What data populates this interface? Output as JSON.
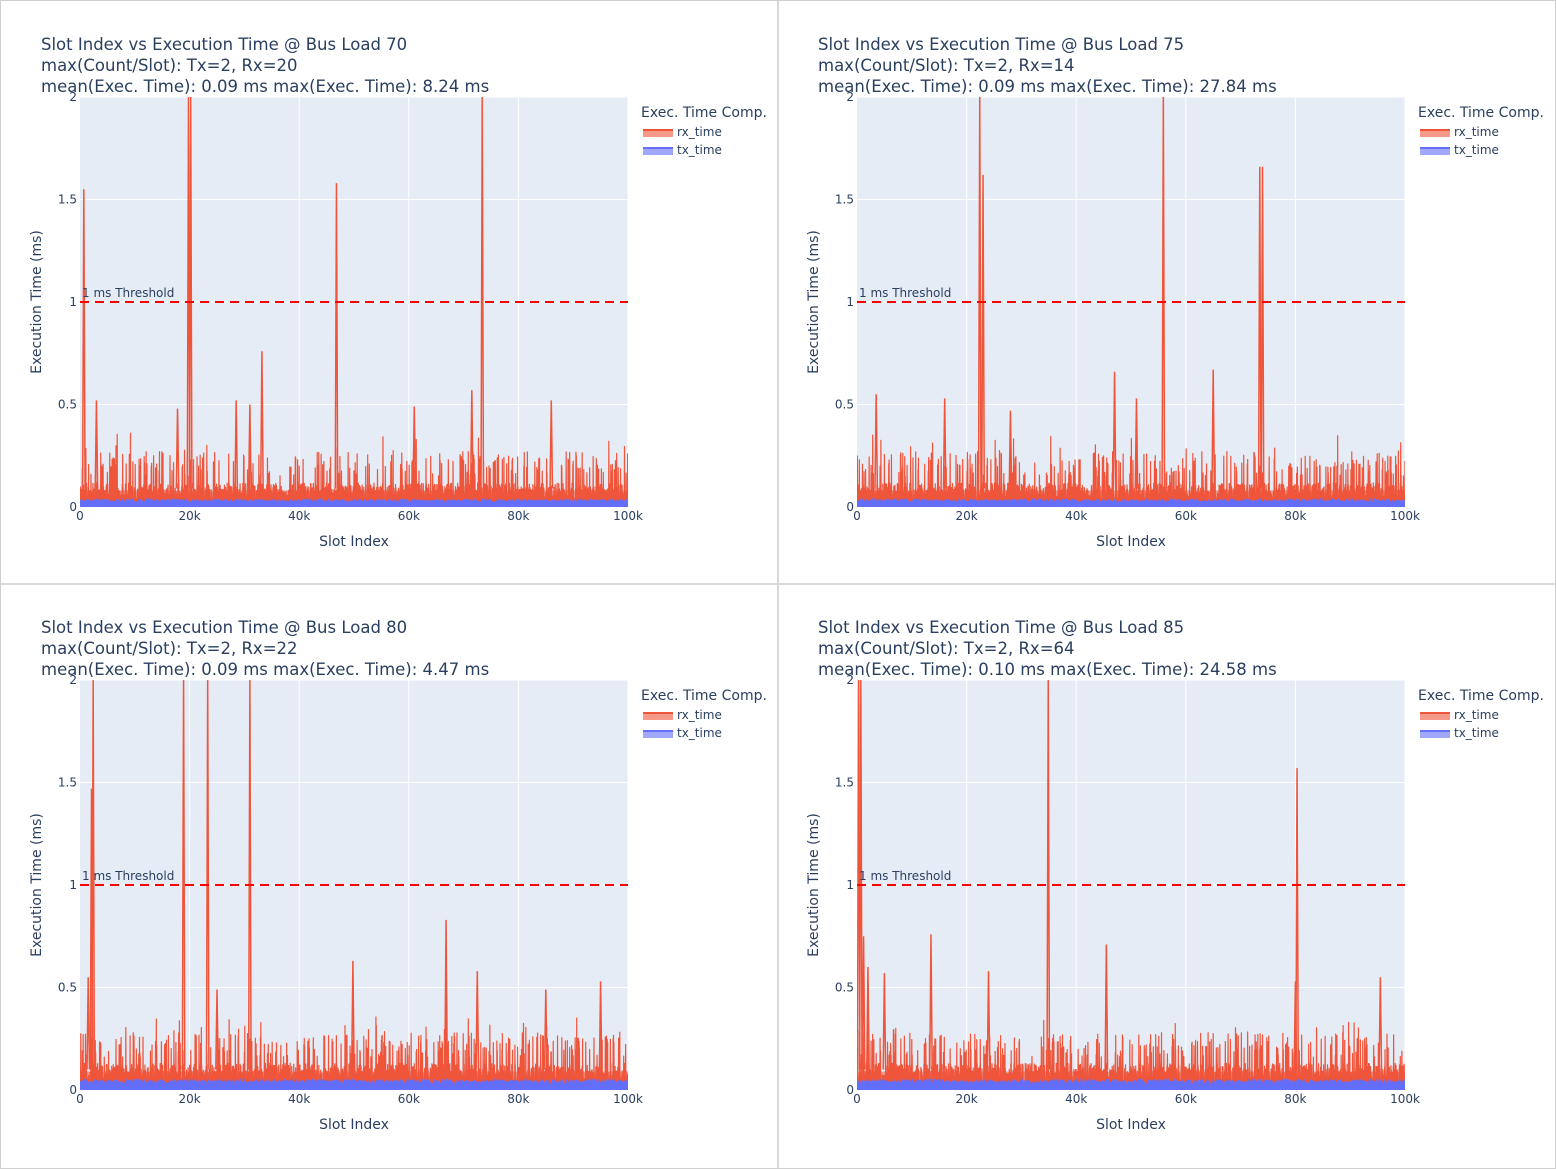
{
  "page": {
    "background": "#ffffff"
  },
  "colors": {
    "plot_bg": "#e5ecf6",
    "grid": "#ffffff",
    "rx": "#ef553b",
    "tx": "#636efa",
    "threshold": "#ff0000",
    "text": "#2a3f5f"
  },
  "chart_data": [
    {
      "type": "line",
      "title_lines": [
        "Slot Index vs Execution Time @ Bus Load 70",
        "max(Count/Slot): Tx=2, Rx=20",
        "mean(Exec. Time): 0.09 ms max(Exec. Time): 8.24 ms"
      ],
      "xlabel": "Slot Index",
      "ylabel": "Execution Time (ms)",
      "xlim": [
        0,
        100000
      ],
      "ylim": [
        0,
        2
      ],
      "xticks": [
        0,
        20000,
        40000,
        60000,
        80000,
        100000
      ],
      "xtick_labels": [
        "0",
        "20k",
        "40k",
        "60k",
        "80k",
        "100k"
      ],
      "yticks": [
        0,
        0.5,
        1,
        1.5,
        2
      ],
      "ytick_labels": [
        "0",
        "0.5",
        "1",
        "1.5",
        "2"
      ],
      "legend_title": "Exec. Time Comp.",
      "legend_position": "top-right",
      "threshold": {
        "value": 1,
        "label": "1 ms Threshold"
      },
      "series": [
        {
          "name": "rx_time",
          "baseline": 0.09,
          "spikes": [
            [
              700,
              1.55
            ],
            [
              19800,
              2.0
            ],
            [
              20200,
              2.0
            ],
            [
              33200,
              0.76
            ],
            [
              46800,
              1.58
            ],
            [
              73400,
              2.0
            ],
            [
              3000,
              0.52
            ],
            [
              17800,
              0.48
            ],
            [
              28500,
              0.52
            ],
            [
              71500,
              0.57
            ],
            [
              86000,
              0.52
            ],
            [
              31000,
              0.5
            ],
            [
              61000,
              0.49
            ]
          ]
        },
        {
          "name": "tx_time",
          "level": 0.03
        }
      ]
    },
    {
      "type": "line",
      "title_lines": [
        "Slot Index vs Execution Time @ Bus Load 75",
        "max(Count/Slot): Tx=2, Rx=14",
        "mean(Exec. Time): 0.09 ms max(Exec. Time): 27.84 ms"
      ],
      "xlabel": "Slot Index",
      "ylabel": "Execution Time (ms)",
      "xlim": [
        0,
        100000
      ],
      "ylim": [
        0,
        2
      ],
      "xticks": [
        0,
        20000,
        40000,
        60000,
        80000,
        100000
      ],
      "xtick_labels": [
        "0",
        "20k",
        "40k",
        "60k",
        "80k",
        "100k"
      ],
      "yticks": [
        0,
        0.5,
        1,
        1.5,
        2
      ],
      "ytick_labels": [
        "0",
        "0.5",
        "1",
        "1.5",
        "2"
      ],
      "legend_title": "Exec. Time Comp.",
      "legend_position": "top-right",
      "threshold": {
        "value": 1,
        "label": "1 ms Threshold"
      },
      "series": [
        {
          "name": "rx_time",
          "baseline": 0.09,
          "spikes": [
            [
              22400,
              2.0
            ],
            [
              23000,
              1.62
            ],
            [
              55900,
              2.0
            ],
            [
              73500,
              1.66
            ],
            [
              74000,
              1.66
            ],
            [
              47000,
              0.66
            ],
            [
              65000,
              0.67
            ],
            [
              51000,
              0.53
            ],
            [
              16000,
              0.53
            ],
            [
              3500,
              0.55
            ],
            [
              28000,
              0.47
            ]
          ]
        },
        {
          "name": "tx_time",
          "level": 0.03
        }
      ]
    },
    {
      "type": "line",
      "title_lines": [
        "Slot Index vs Execution Time @ Bus Load 80",
        "max(Count/Slot): Tx=2, Rx=22",
        "mean(Exec. Time): 0.09 ms max(Exec. Time): 4.47 ms"
      ],
      "xlabel": "Slot Index",
      "ylabel": "Execution Time (ms)",
      "xlim": [
        0,
        100000
      ],
      "ylim": [
        0,
        2
      ],
      "xticks": [
        0,
        20000,
        40000,
        60000,
        80000,
        100000
      ],
      "xtick_labels": [
        "0",
        "20k",
        "40k",
        "60k",
        "80k",
        "100k"
      ],
      "yticks": [
        0,
        0.5,
        1,
        1.5,
        2
      ],
      "ytick_labels": [
        "0",
        "0.5",
        "1",
        "1.5",
        "2"
      ],
      "legend_title": "Exec. Time Comp.",
      "legend_position": "top-right",
      "threshold": {
        "value": 1,
        "label": "1 ms Threshold"
      },
      "series": [
        {
          "name": "rx_time",
          "baseline": 0.1,
          "spikes": [
            [
              2100,
              1.47
            ],
            [
              2400,
              2.0
            ],
            [
              18900,
              2.0
            ],
            [
              23300,
              2.0
            ],
            [
              31000,
              2.0
            ],
            [
              66800,
              0.83
            ],
            [
              49800,
              0.63
            ],
            [
              72500,
              0.58
            ],
            [
              95000,
              0.53
            ],
            [
              85000,
              0.49
            ],
            [
              1500,
              0.55
            ],
            [
              25000,
              0.49
            ]
          ]
        },
        {
          "name": "tx_time",
          "level": 0.04
        }
      ]
    },
    {
      "type": "line",
      "title_lines": [
        "Slot Index vs Execution Time @ Bus Load 85",
        "max(Count/Slot): Tx=2, Rx=64",
        "mean(Exec. Time): 0.10 ms max(Exec. Time): 24.58 ms"
      ],
      "xlabel": "Slot Index",
      "ylabel": "Execution Time (ms)",
      "xlim": [
        0,
        100000
      ],
      "ylim": [
        0,
        2
      ],
      "xticks": [
        0,
        20000,
        40000,
        60000,
        80000,
        100000
      ],
      "xtick_labels": [
        "0",
        "20k",
        "40k",
        "60k",
        "80k",
        "100k"
      ],
      "yticks": [
        0,
        0.5,
        1,
        1.5,
        2
      ],
      "ytick_labels": [
        "0",
        "0.5",
        "1",
        "1.5",
        "2"
      ],
      "legend_title": "Exec. Time Comp.",
      "legend_position": "top-right",
      "threshold": {
        "value": 1,
        "label": "1 ms Threshold"
      },
      "series": [
        {
          "name": "rx_time",
          "baseline": 0.1,
          "spikes": [
            [
              300,
              2.0
            ],
            [
              700,
              2.0
            ],
            [
              1200,
              0.75
            ],
            [
              34900,
              2.0
            ],
            [
              80300,
              1.57
            ],
            [
              80000,
              0.53
            ],
            [
              13500,
              0.76
            ],
            [
              45500,
              0.71
            ],
            [
              95500,
              0.55
            ],
            [
              5000,
              0.57
            ],
            [
              2000,
              0.6
            ],
            [
              24000,
              0.58
            ]
          ]
        },
        {
          "name": "tx_time",
          "level": 0.04
        }
      ]
    }
  ]
}
